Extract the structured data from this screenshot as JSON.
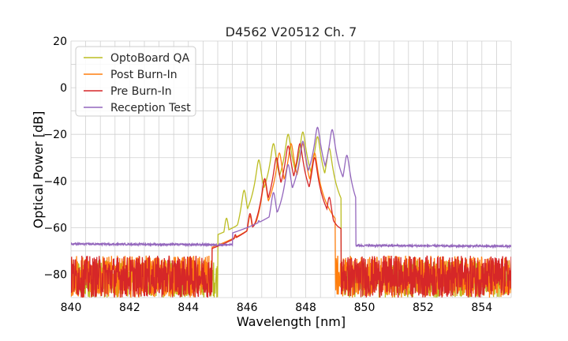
{
  "chart_data": {
    "type": "line",
    "title": "D4562 V20512 Ch. 7",
    "xlabel": "Wavelength [nm]",
    "ylabel": "Optical Power [dB]",
    "xlim": [
      840,
      855
    ],
    "ylim": [
      -90,
      20
    ],
    "xticks": [
      840,
      842,
      844,
      846,
      848,
      850,
      852,
      854
    ],
    "yticks": [
      20,
      0,
      -20,
      -40,
      -60,
      -80
    ],
    "xtick_labels": [
      "840",
      "842",
      "844",
      "846",
      "848",
      "850",
      "852",
      "854"
    ],
    "ytick_labels": [
      "20",
      "0",
      "−20",
      "−40",
      "−60",
      "−80"
    ],
    "grid": true,
    "legend_position": "top-left",
    "series": [
      {
        "name": "OptoBoard QA",
        "color": "#bcbd22",
        "noise_floor": [
          -90,
          -74
        ],
        "peaks": [
          [
            845.3,
            -56
          ],
          [
            845.9,
            -44
          ],
          [
            846.4,
            -31
          ],
          [
            846.9,
            -24
          ],
          [
            847.4,
            -20
          ],
          [
            847.9,
            -19
          ],
          [
            848.4,
            -21
          ],
          [
            848.8,
            -26
          ]
        ],
        "passband": [
          845.0,
          849.2
        ]
      },
      {
        "name": "Post Burn-In",
        "color": "#ff7f0e",
        "noise_floor": [
          -90,
          -72
        ],
        "peaks": [
          [
            845.6,
            -64
          ],
          [
            846.1,
            -55
          ],
          [
            846.6,
            -40
          ],
          [
            847.1,
            -28
          ],
          [
            847.5,
            -24
          ],
          [
            847.9,
            -24
          ],
          [
            848.3,
            -28
          ]
        ],
        "passband": [
          844.8,
          849.0
        ]
      },
      {
        "name": "Pre Burn-In",
        "color": "#d62728",
        "noise_floor": [
          -90,
          -72
        ],
        "peaks": [
          [
            845.6,
            -63
          ],
          [
            846.1,
            -54
          ],
          [
            846.6,
            -39
          ],
          [
            847.0,
            -30
          ],
          [
            847.4,
            -25
          ],
          [
            847.8,
            -24
          ],
          [
            848.3,
            -30
          ],
          [
            848.8,
            -47
          ]
        ],
        "passband": [
          844.8,
          849.2
        ]
      },
      {
        "name": "Reception Test",
        "color": "#9467bd",
        "noise_floor": [
          -67,
          -68
        ],
        "peaks": [
          [
            846.4,
            -57
          ],
          [
            846.9,
            -45
          ],
          [
            847.4,
            -33
          ],
          [
            847.9,
            -23
          ],
          [
            848.4,
            -17
          ],
          [
            848.9,
            -18
          ],
          [
            849.4,
            -29
          ]
        ],
        "passband": [
          845.5,
          849.7
        ]
      }
    ]
  }
}
